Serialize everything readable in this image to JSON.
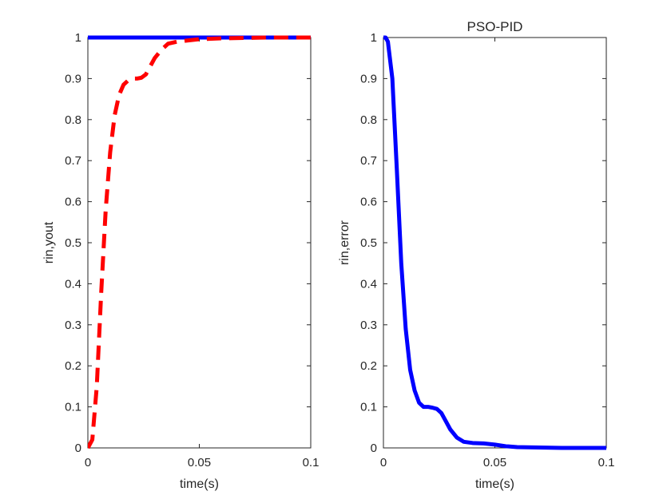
{
  "chart_data": [
    {
      "type": "line",
      "title": "",
      "xlabel": "time(s)",
      "ylabel": "rin,yout",
      "xlim": [
        0,
        0.1
      ],
      "ylim": [
        0,
        1
      ],
      "xticks": [
        0,
        0.05,
        0.1
      ],
      "xtick_labels": [
        "0",
        "0.05",
        "0.1"
      ],
      "yticks": [
        0,
        0.1,
        0.2,
        0.3,
        0.4,
        0.5,
        0.6,
        0.7,
        0.8,
        0.9,
        1
      ],
      "ytick_labels": [
        "0",
        "0.1",
        "0.2",
        "0.3",
        "0.4",
        "0.5",
        "0.6",
        "0.7",
        "0.8",
        "0.9",
        "1"
      ],
      "grid": false,
      "legend": "none",
      "series": [
        {
          "color": "#0000ff",
          "style": "solid",
          "x": [
            0,
            0.1
          ],
          "y": [
            1,
            1
          ]
        },
        {
          "color": "#ff0000",
          "style": "dashed",
          "x": [
            0,
            0.002,
            0.004,
            0.006,
            0.008,
            0.01,
            0.012,
            0.014,
            0.016,
            0.018,
            0.02,
            0.022,
            0.024,
            0.026,
            0.028,
            0.03,
            0.033,
            0.036,
            0.04,
            0.045,
            0.05,
            0.06,
            0.07,
            0.08,
            0.09,
            0.1
          ],
          "y": [
            0,
            0.02,
            0.15,
            0.38,
            0.58,
            0.72,
            0.81,
            0.86,
            0.885,
            0.895,
            0.9,
            0.9,
            0.902,
            0.91,
            0.93,
            0.95,
            0.97,
            0.985,
            0.99,
            0.993,
            0.996,
            0.998,
            0.999,
            1.0,
            1.0,
            1.0
          ]
        }
      ]
    },
    {
      "type": "line",
      "title": "PSO-PID",
      "xlabel": "time(s)",
      "ylabel": "rin,error",
      "xlim": [
        0,
        0.1
      ],
      "ylim": [
        0,
        1
      ],
      "xticks": [
        0,
        0.05,
        0.1
      ],
      "xtick_labels": [
        "0",
        "0.05",
        "0.1"
      ],
      "yticks": [
        0,
        0.1,
        0.2,
        0.3,
        0.4,
        0.5,
        0.6,
        0.7,
        0.8,
        0.9,
        1
      ],
      "ytick_labels": [
        "0",
        "0.1",
        "0.2",
        "0.3",
        "0.4",
        "0.5",
        "0.6",
        "0.7",
        "0.8",
        "0.9",
        "1"
      ],
      "grid": false,
      "legend": "none",
      "series": [
        {
          "color": "#0000ff",
          "style": "solid",
          "x": [
            0,
            0.001,
            0.002,
            0.004,
            0.006,
            0.008,
            0.01,
            0.012,
            0.014,
            0.016,
            0.018,
            0.02,
            0.022,
            0.024,
            0.026,
            0.028,
            0.03,
            0.033,
            0.036,
            0.04,
            0.045,
            0.05,
            0.055,
            0.06,
            0.07,
            0.08,
            0.09,
            0.1
          ],
          "y": [
            1.0,
            1.0,
            0.99,
            0.9,
            0.68,
            0.45,
            0.29,
            0.19,
            0.14,
            0.11,
            0.1,
            0.1,
            0.098,
            0.095,
            0.085,
            0.065,
            0.045,
            0.025,
            0.015,
            0.012,
            0.011,
            0.008,
            0.004,
            0.002,
            0.001,
            0,
            0,
            0
          ]
        }
      ]
    }
  ]
}
